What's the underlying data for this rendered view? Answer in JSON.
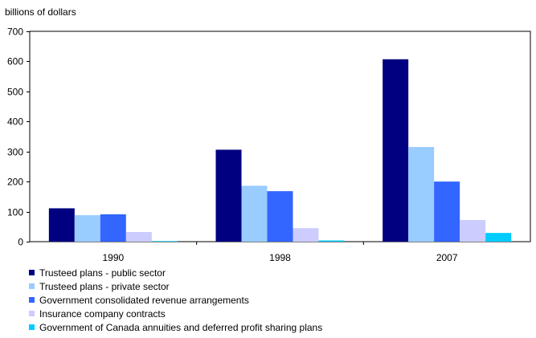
{
  "chart_data": {
    "type": "bar",
    "title": "",
    "xlabel": "",
    "ylabel": "billions of dollars",
    "ylim": [
      0,
      700
    ],
    "yticks": [
      0,
      100,
      200,
      300,
      400,
      500,
      600,
      700
    ],
    "grid": false,
    "legend_position": "bottom",
    "categories": [
      "1990",
      "1998",
      "2007"
    ],
    "series": [
      {
        "name": "Trusteed plans - public sector",
        "color": "#000080",
        "values": [
          111,
          306,
          607
        ]
      },
      {
        "name": "Trusteed plans - private sector",
        "color": "#99ccff",
        "values": [
          88,
          186,
          315
        ]
      },
      {
        "name": "Government consolidated revenue arrangements",
        "color": "#3366ff",
        "values": [
          91,
          168,
          200
        ]
      },
      {
        "name": "Insurance company contracts",
        "color": "#ccccff",
        "values": [
          32,
          45,
          72
        ]
      },
      {
        "name": "Government of Canada annuities and deferred profit sharing plans",
        "color": "#00ccff",
        "values": [
          2,
          4,
          29
        ]
      }
    ]
  }
}
